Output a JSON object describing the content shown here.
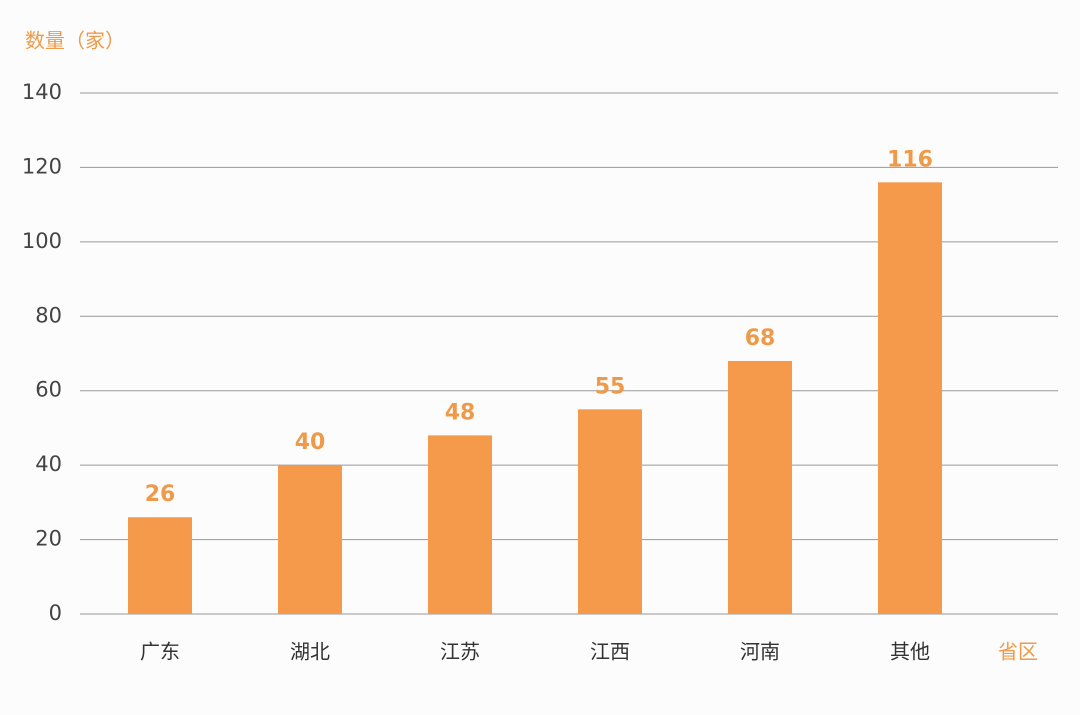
{
  "chart_data": {
    "type": "bar",
    "y_label": "数量（家）",
    "x_label": "省区",
    "categories": [
      "广东",
      "湖北",
      "江苏",
      "江西",
      "河南",
      "其他"
    ],
    "values": [
      26,
      40,
      48,
      55,
      68,
      116
    ],
    "color": "#f49a4a",
    "ylim": [
      0,
      140
    ],
    "yticks": [
      0,
      20,
      40,
      60,
      80,
      100,
      120,
      140
    ],
    "grid": true
  }
}
